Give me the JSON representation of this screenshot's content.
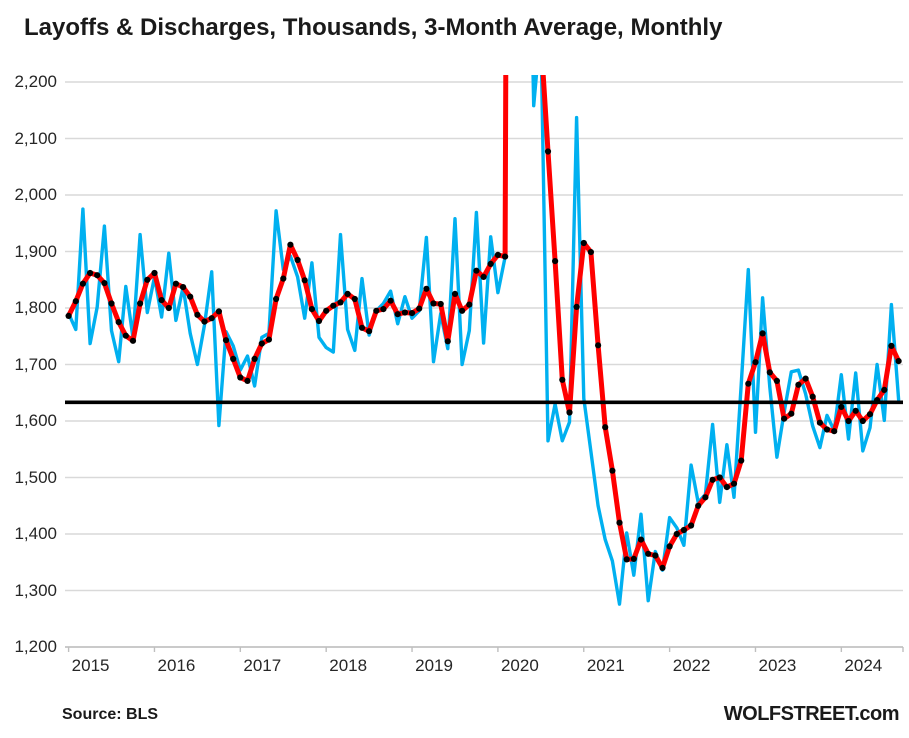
{
  "title": {
    "part1": "Layoffs & Discharges, Thousands,",
    "part2": "3-Month Average,",
    "part3": "Monthly"
  },
  "footer": {
    "source": "Source: BLS",
    "site": "WOLFSTREET.com"
  },
  "colors": {
    "monthly_line": "#00B0F0",
    "average_line": "#FF0000",
    "marker": "#000000",
    "reference_line": "#000000",
    "gridline": "#D9D9D9",
    "axis_line": "#BFBFBF",
    "axis_text": "#262626",
    "title_text": "#1a1a1a"
  },
  "chart_data": {
    "type": "line",
    "title": "Layoffs & Discharges, Thousands, 3-Month Average, Monthly",
    "x_start": "2015-01",
    "x_end": "2024-09",
    "frequency": "monthly",
    "x_tick_labels": [
      "2015",
      "2016",
      "2017",
      "2018",
      "2019",
      "2020",
      "2021",
      "2022",
      "2023",
      "2024"
    ],
    "ylim": [
      1200,
      2200
    ],
    "y_tick_values": [
      2200,
      2100,
      2000,
      1900,
      1800,
      1700,
      1600,
      1500,
      1400,
      1300,
      1200
    ],
    "y_tick_labels": [
      "2,200",
      "2,100",
      "2,000",
      "1,900",
      "1,800",
      "1,700",
      "1,600",
      "1,500",
      "1,400",
      "1,300",
      "1,200"
    ],
    "grid": "horizontal",
    "legend": "in-title",
    "reference_line_value": 1633,
    "series": [
      {
        "name": "Monthly",
        "color": "#00B0F0",
        "values": [
          1790,
          1762,
          1975,
          1737,
          1802,
          1945,
          1760,
          1705,
          1838,
          1747,
          1930,
          1792,
          1855,
          1784,
          1897,
          1778,
          1837,
          1755,
          1700,
          1770,
          1864,
          1592,
          1758,
          1733,
          1690,
          1715,
          1662,
          1748,
          1755,
          1972,
          1868,
          1892,
          1855,
          1782,
          1880,
          1748,
          1730,
          1722,
          1930,
          1762,
          1725,
          1852,
          1752,
          1795,
          1808,
          1830,
          1772,
          1820,
          1782,
          1795,
          1925,
          1705,
          1790,
          1728,
          1958,
          1700,
          1760,
          1969,
          1738,
          1926,
          1827,
          1890,
          11500,
          8000,
          2800,
          2158,
          2300,
          1565,
          1630,
          1565,
          1598,
          2137,
          1640,
          1546,
          1450,
          1390,
          1352,
          1276,
          1402,
          1327,
          1435,
          1282,
          1369,
          1336,
          1429,
          1411,
          1380,
          1522,
          1456,
          1470,
          1594,
          1456,
          1558,
          1465,
          1664,
          1868,
          1580,
          1818,
          1660,
          1536,
          1615,
          1687,
          1690,
          1648,
          1591,
          1553,
          1610,
          1583,
          1682,
          1568,
          1685,
          1547,
          1588,
          1700,
          1601,
          1806,
          1638
        ]
      },
      {
        "name": "3-Month Average",
        "color": "#FF0000",
        "marker_color": "#000000",
        "values": [
          1786,
          1812,
          1843,
          1862,
          1858,
          1844,
          1808,
          1775,
          1751,
          1742,
          1808,
          1850,
          1862,
          1814,
          1800,
          1843,
          1837,
          1820,
          1788,
          1776,
          1782,
          1794,
          1743,
          1710,
          1677,
          1671,
          1710,
          1737,
          1744,
          1816,
          1852,
          1912,
          1885,
          1849,
          1798,
          1777,
          1795,
          1804,
          1810,
          1825,
          1816,
          1765,
          1759,
          1795,
          1798,
          1813,
          1789,
          1792,
          1791,
          1799,
          1834,
          1808,
          1807,
          1741,
          1825,
          1795,
          1806,
          1866,
          1855,
          1878,
          1894,
          1891,
          5300,
          7000,
          6000,
          3500,
          2280,
          2077,
          1883,
          1673,
          1615,
          1802,
          1915,
          1899,
          1734,
          1589,
          1512,
          1420,
          1355,
          1356,
          1390,
          1365,
          1362,
          1340,
          1378,
          1400,
          1407,
          1415,
          1450,
          1465,
          1496,
          1500,
          1483,
          1489,
          1530,
          1666,
          1704,
          1755,
          1686,
          1671,
          1604,
          1613,
          1664,
          1675,
          1643,
          1597,
          1585,
          1582,
          1625,
          1600,
          1618,
          1600,
          1612,
          1637,
          1655,
          1733,
          1706
        ]
      }
    ]
  }
}
